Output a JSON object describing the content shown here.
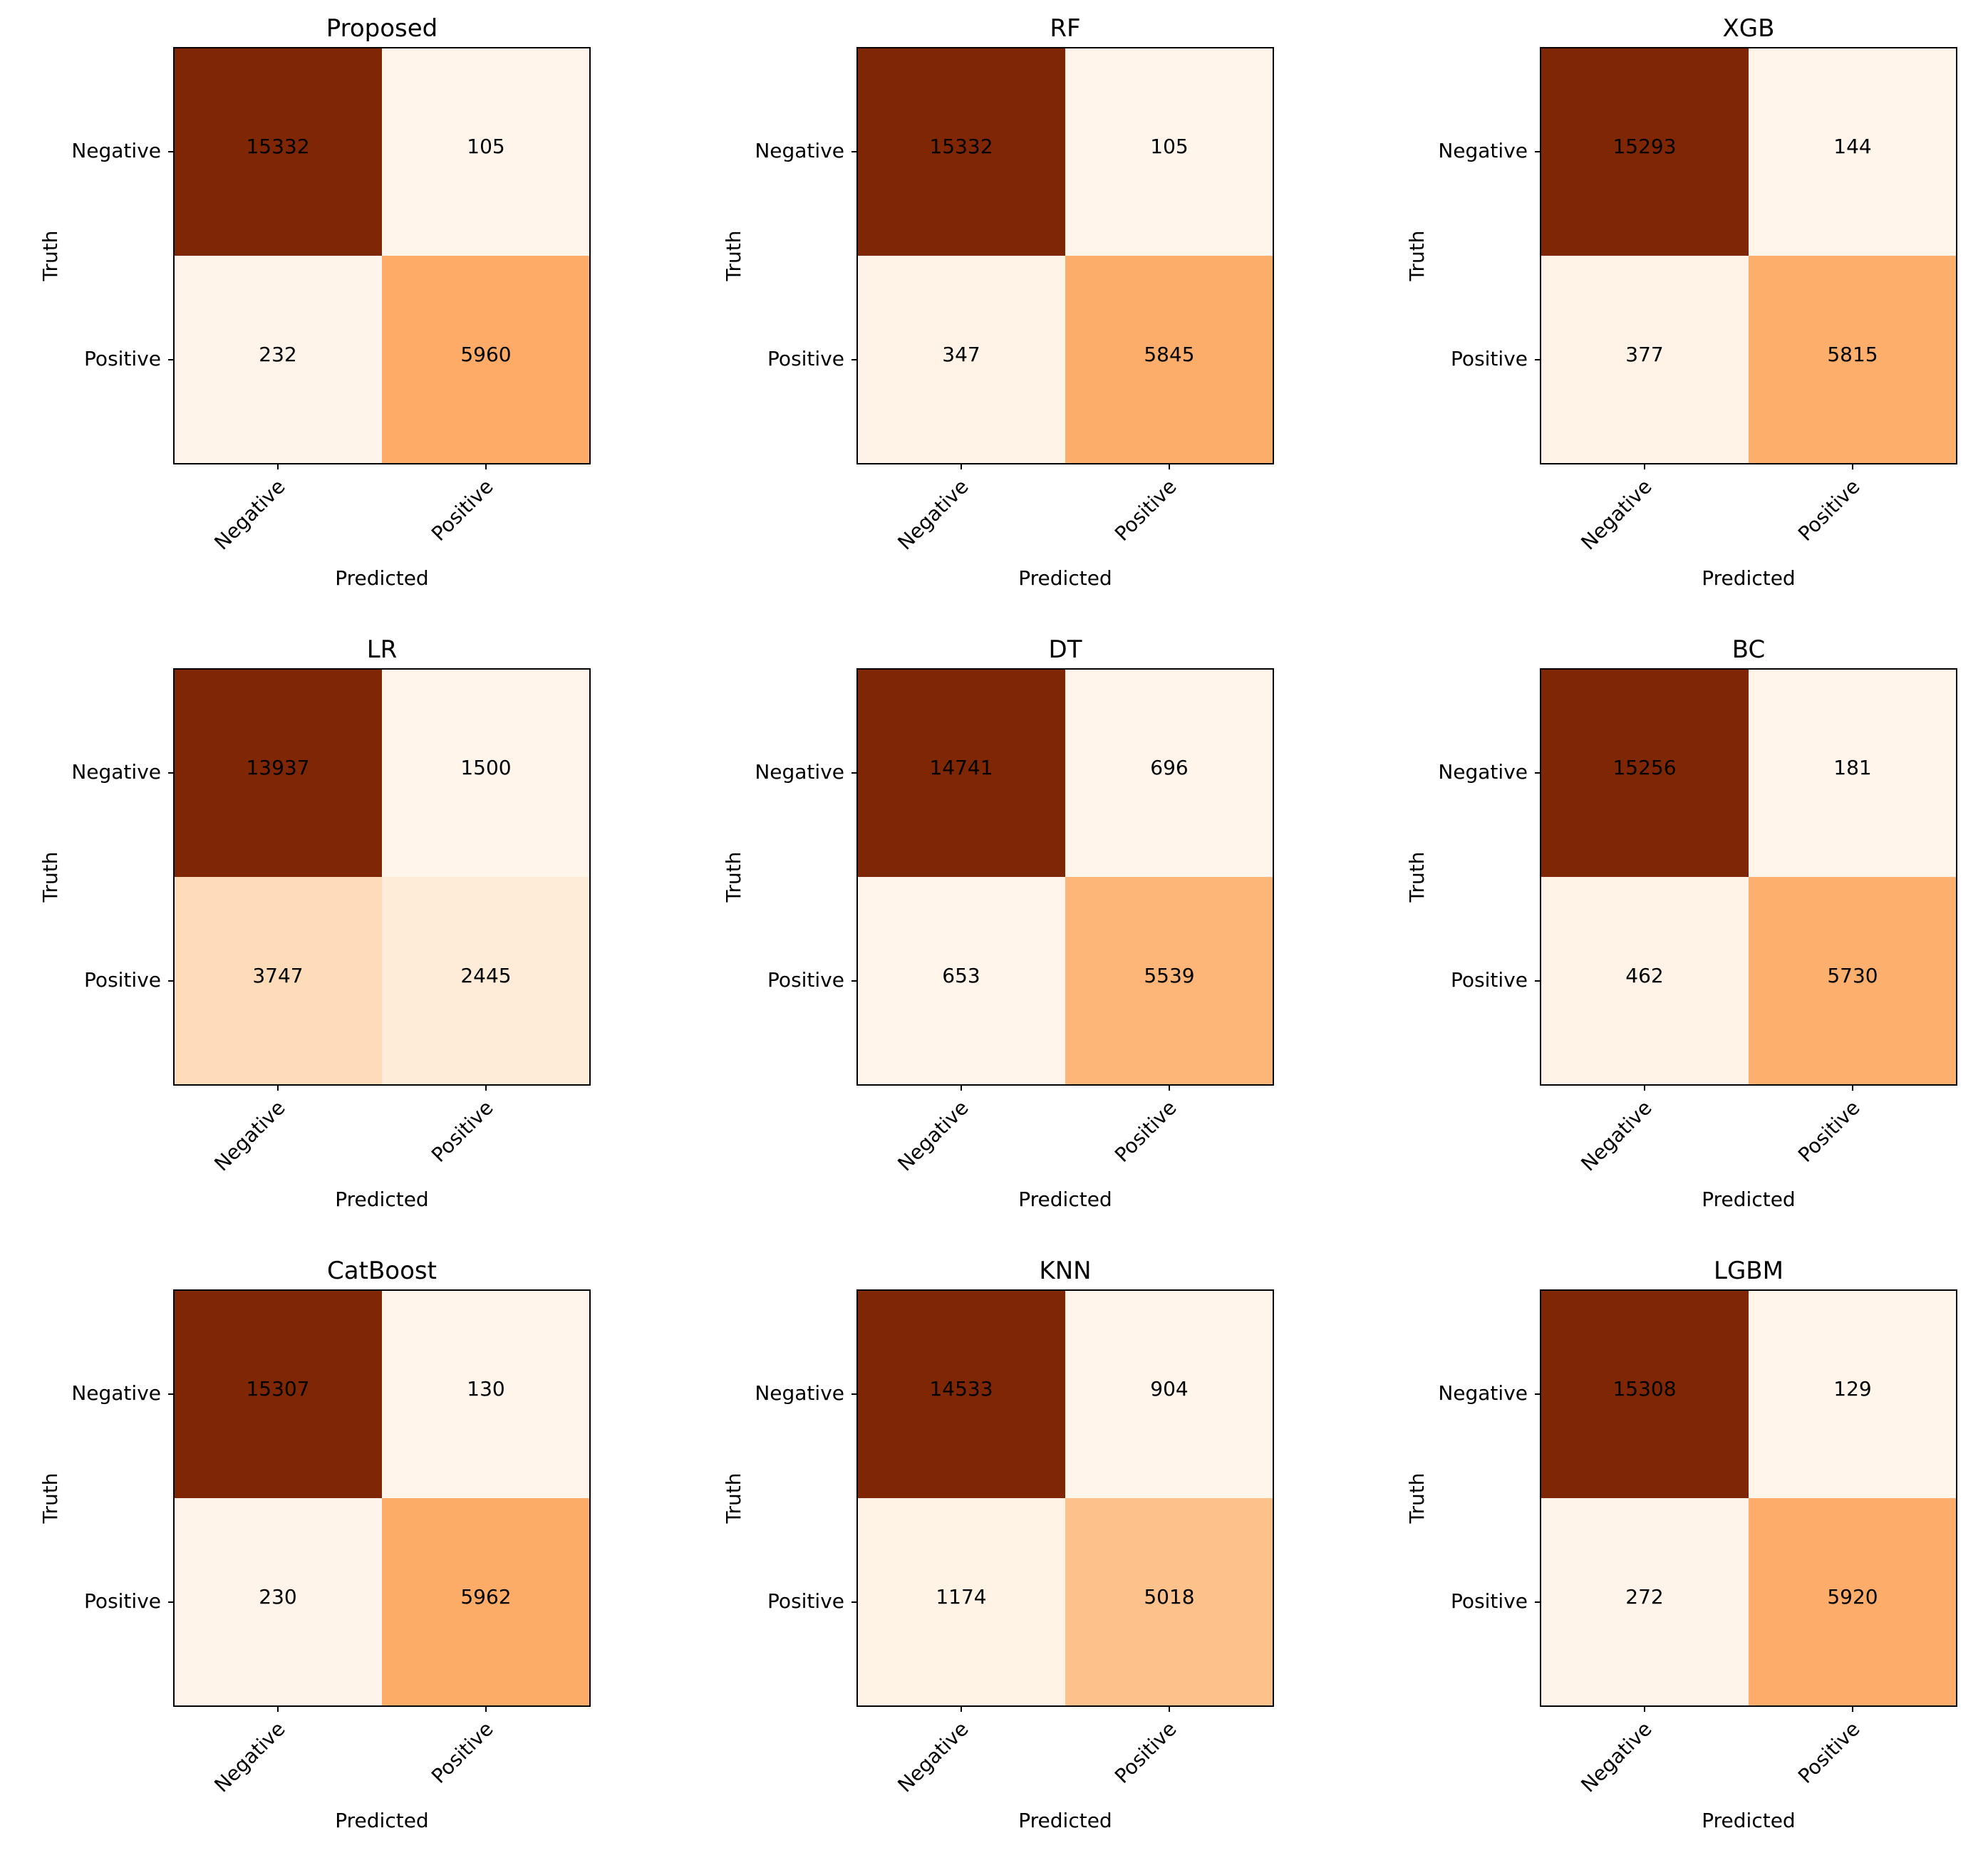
{
  "chart_data": [
    {
      "type": "heatmap",
      "title": "Proposed",
      "xlabel": "Predicted",
      "ylabel": "Truth",
      "x_categories": [
        "Negative",
        "Positive"
      ],
      "y_categories": [
        "Negative",
        "Positive"
      ],
      "values": [
        [
          15332,
          105
        ],
        [
          232,
          5960
        ]
      ],
      "colormap": "Oranges"
    },
    {
      "type": "heatmap",
      "title": "RF",
      "xlabel": "Predicted",
      "ylabel": "Truth",
      "x_categories": [
        "Negative",
        "Positive"
      ],
      "y_categories": [
        "Negative",
        "Positive"
      ],
      "values": [
        [
          15332,
          105
        ],
        [
          347,
          5845
        ]
      ],
      "colormap": "Oranges"
    },
    {
      "type": "heatmap",
      "title": "XGB",
      "xlabel": "Predicted",
      "ylabel": "Truth",
      "x_categories": [
        "Negative",
        "Positive"
      ],
      "y_categories": [
        "Negative",
        "Positive"
      ],
      "values": [
        [
          15293,
          144
        ],
        [
          377,
          5815
        ]
      ],
      "colormap": "Oranges"
    },
    {
      "type": "heatmap",
      "title": "LR",
      "xlabel": "Predicted",
      "ylabel": "Truth",
      "x_categories": [
        "Negative",
        "Positive"
      ],
      "y_categories": [
        "Negative",
        "Positive"
      ],
      "values": [
        [
          13937,
          1500
        ],
        [
          3747,
          2445
        ]
      ],
      "colormap": "Oranges"
    },
    {
      "type": "heatmap",
      "title": "DT",
      "xlabel": "Predicted",
      "ylabel": "Truth",
      "x_categories": [
        "Negative",
        "Positive"
      ],
      "y_categories": [
        "Negative",
        "Positive"
      ],
      "values": [
        [
          14741,
          696
        ],
        [
          653,
          5539
        ]
      ],
      "colormap": "Oranges"
    },
    {
      "type": "heatmap",
      "title": "BC",
      "xlabel": "Predicted",
      "ylabel": "Truth",
      "x_categories": [
        "Negative",
        "Positive"
      ],
      "y_categories": [
        "Negative",
        "Positive"
      ],
      "values": [
        [
          15256,
          181
        ],
        [
          462,
          5730
        ]
      ],
      "colormap": "Oranges"
    },
    {
      "type": "heatmap",
      "title": "CatBoost",
      "xlabel": "Predicted",
      "ylabel": "Truth",
      "x_categories": [
        "Negative",
        "Positive"
      ],
      "y_categories": [
        "Negative",
        "Positive"
      ],
      "values": [
        [
          15307,
          130
        ],
        [
          230,
          5962
        ]
      ],
      "colormap": "Oranges"
    },
    {
      "type": "heatmap",
      "title": "KNN",
      "xlabel": "Predicted",
      "ylabel": "Truth",
      "x_categories": [
        "Negative",
        "Positive"
      ],
      "y_categories": [
        "Negative",
        "Positive"
      ],
      "values": [
        [
          14533,
          904
        ],
        [
          1174,
          5018
        ]
      ],
      "colormap": "Oranges"
    },
    {
      "type": "heatmap",
      "title": "LGBM",
      "xlabel": "Predicted",
      "ylabel": "Truth",
      "x_categories": [
        "Negative",
        "Positive"
      ],
      "y_categories": [
        "Negative",
        "Positive"
      ],
      "values": [
        [
          15308,
          129
        ],
        [
          272,
          5920
        ]
      ],
      "colormap": "Oranges"
    }
  ]
}
